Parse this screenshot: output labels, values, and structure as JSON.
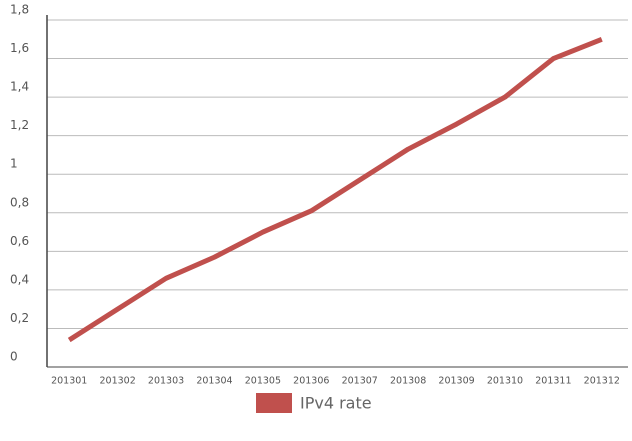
{
  "chart_data": {
    "type": "line",
    "categories": [
      "201301",
      "201302",
      "201303",
      "201304",
      "201305",
      "201306",
      "201307",
      "201308",
      "201309",
      "201310",
      "201311",
      "201312"
    ],
    "series": [
      {
        "name": "IPv4 rate",
        "color": "#c0504d",
        "values": [
          0.14,
          0.3,
          0.46,
          0.57,
          0.7,
          0.81,
          0.97,
          1.13,
          1.26,
          1.4,
          1.6,
          1.7
        ]
      }
    ],
    "ylim": [
      0,
      1.8
    ],
    "yticks": [
      0,
      {
        "value": 0.2,
        "label": "0,2"
      },
      {
        "value": 0.4,
        "label": "0,4"
      },
      {
        "value": 0.6,
        "label": "0,6"
      },
      {
        "value": 0.8,
        "label": "0,8"
      },
      1,
      {
        "value": 1.2,
        "label": "1,2"
      },
      {
        "value": 1.4,
        "label": "1,4"
      },
      {
        "value": 1.6,
        "label": "1,6"
      },
      {
        "value": 1.8,
        "label": "1,8"
      }
    ],
    "grid": true,
    "legend": "bottom"
  }
}
